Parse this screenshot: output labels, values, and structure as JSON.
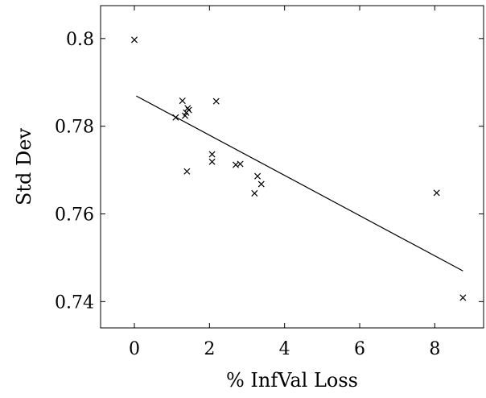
{
  "chart_data": {
    "type": "scatter",
    "title": "",
    "xlabel": "% InfVal Loss",
    "ylabel": "Std Dev",
    "xlim": [
      -0.9,
      9.3
    ],
    "ylim": [
      0.734,
      0.8075
    ],
    "xticks": [
      0,
      2,
      4,
      6,
      8
    ],
    "xtick_labels": [
      "0",
      "2",
      "4",
      "6",
      "8"
    ],
    "yticks": [
      0.74,
      0.76,
      0.78,
      0.8
    ],
    "ytick_labels": [
      "0.74",
      "0.76",
      "0.78",
      "0.8"
    ],
    "grid": false,
    "marker": "x",
    "series": [
      {
        "points": [
          [
            0.0,
            0.7997
          ],
          [
            1.1,
            0.782
          ],
          [
            1.28,
            0.7858
          ],
          [
            1.35,
            0.7824
          ],
          [
            1.38,
            0.7831
          ],
          [
            1.42,
            0.7841
          ],
          [
            1.45,
            0.7837
          ],
          [
            1.4,
            0.7697
          ],
          [
            2.07,
            0.7736
          ],
          [
            2.07,
            0.7719
          ],
          [
            2.18,
            0.7857
          ],
          [
            2.7,
            0.7712
          ],
          [
            2.82,
            0.7714
          ],
          [
            3.2,
            0.7647
          ],
          [
            3.28,
            0.7686
          ],
          [
            3.38,
            0.7668
          ],
          [
            8.05,
            0.7648
          ],
          [
            8.75,
            0.7409
          ]
        ]
      }
    ],
    "trendline": {
      "x": [
        0.05,
        8.75
      ],
      "y": [
        0.7869,
        0.747
      ]
    }
  }
}
